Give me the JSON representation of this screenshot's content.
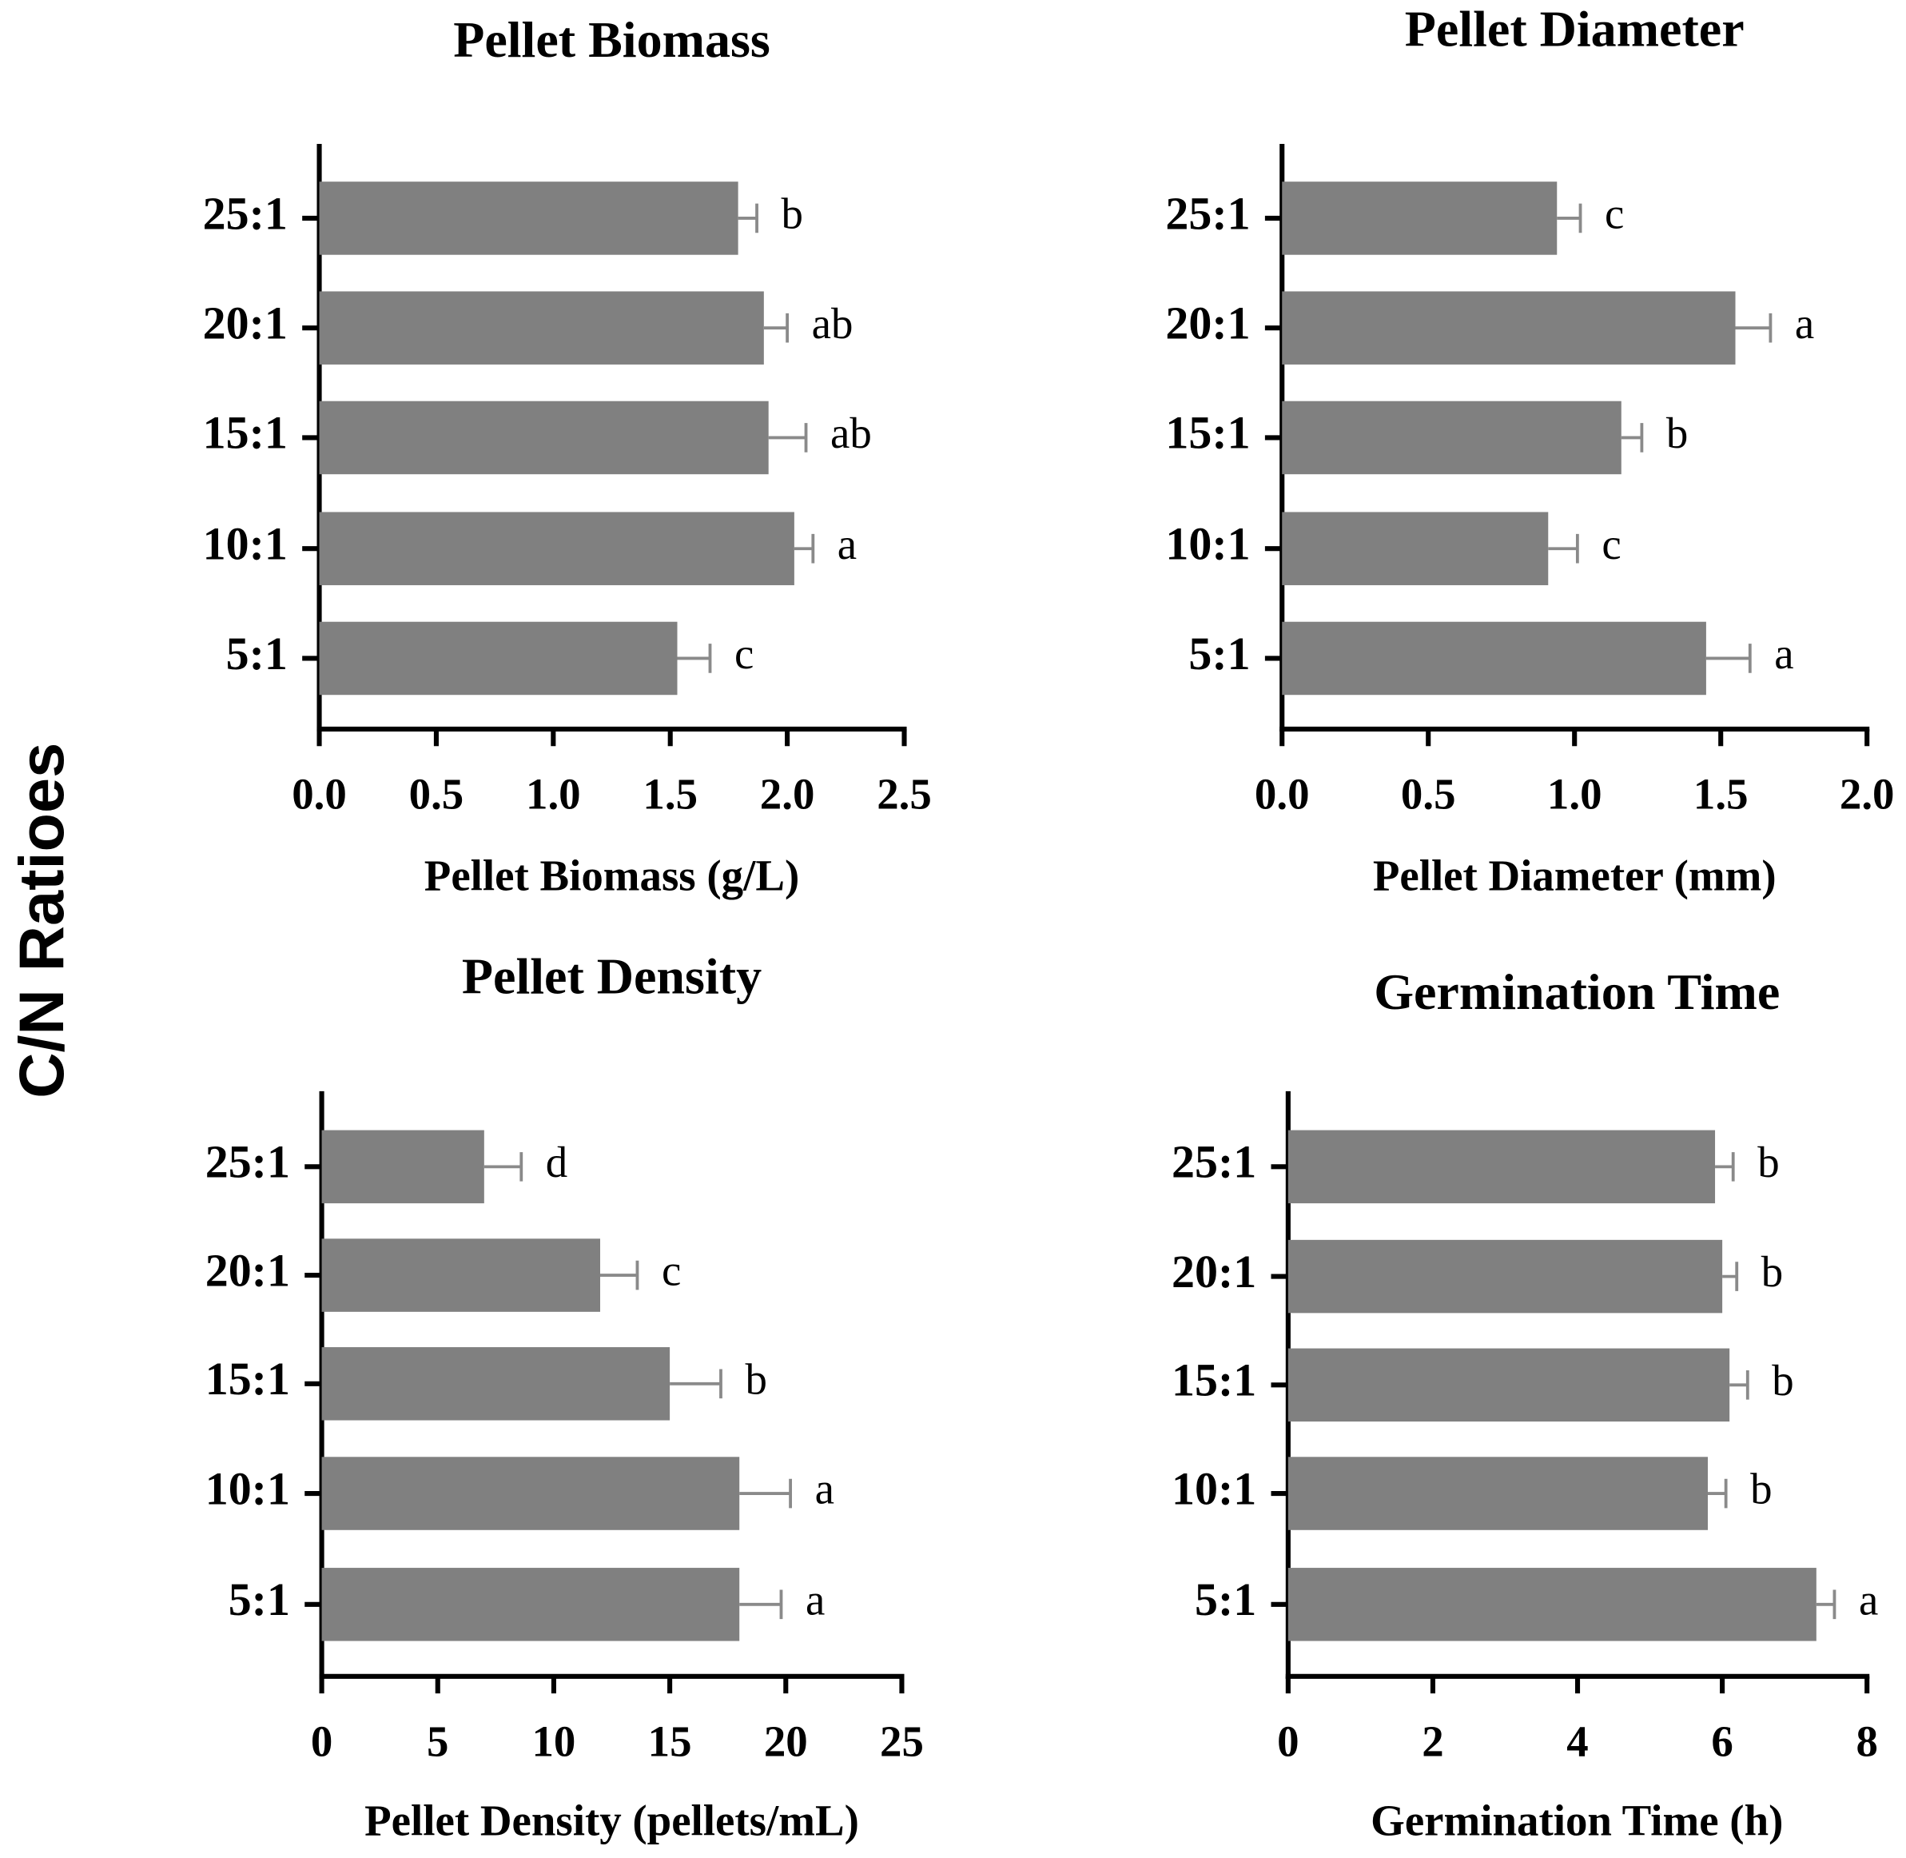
{
  "ylabel": "C/N Ratioes",
  "chart_data": [
    {
      "type": "hbar",
      "title": "Pellet Biomass",
      "xlabel": "Pellet Biomass (g/L)",
      "categories": [
        "25:1",
        "20:1",
        "15:1",
        "10:1",
        "5:1"
      ],
      "values": [
        1.79,
        1.9,
        1.92,
        2.03,
        1.53
      ],
      "errors": [
        0.08,
        0.1,
        0.16,
        0.08,
        0.14
      ],
      "annotations": [
        "b",
        "ab",
        "ab",
        "a",
        "c"
      ],
      "color": "#808080",
      "error_color": "#8a8a8a",
      "xlim": [
        0,
        2.5
      ],
      "xticks": [
        {
          "value": 0,
          "label": "0.0"
        },
        {
          "value": 0.5,
          "label": "0.5"
        },
        {
          "value": 1,
          "label": "1.0"
        },
        {
          "value": 1.5,
          "label": "1.5"
        },
        {
          "value": 2,
          "label": "2.0"
        },
        {
          "value": 2.5,
          "label": "2.5"
        }
      ]
    },
    {
      "type": "hbar",
      "title": "Pellet Diameter",
      "xlabel": "Pellet Diameter (mm)",
      "categories": [
        "25:1",
        "20:1",
        "15:1",
        "10:1",
        "5:1"
      ],
      "values": [
        0.94,
        1.55,
        1.16,
        0.91,
        1.45
      ],
      "errors": [
        0.08,
        0.12,
        0.07,
        0.1,
        0.15
      ],
      "annotations": [
        "c",
        "a",
        "b",
        "c",
        "a"
      ],
      "color": "#808080",
      "error_color": "#8a8a8a",
      "xlim": [
        0,
        2
      ],
      "xticks": [
        {
          "value": 0,
          "label": "0.0"
        },
        {
          "value": 0.5,
          "label": "0.5"
        },
        {
          "value": 1,
          "label": "1.0"
        },
        {
          "value": 1.5,
          "label": "1.5"
        },
        {
          "value": 2,
          "label": "2.0"
        }
      ]
    },
    {
      "type": "hbar",
      "title": "Pellet Density",
      "xlabel": "Pellet Density (pellets/mL)",
      "categories": [
        "25:1",
        "20:1",
        "15:1",
        "10:1",
        "5:1"
      ],
      "values": [
        7,
        12,
        15,
        18,
        18
      ],
      "errors": [
        1.6,
        1.6,
        2.2,
        2.2,
        1.8
      ],
      "annotations": [
        "d",
        "c",
        "b",
        "a",
        "a"
      ],
      "color": "#808080",
      "error_color": "#8a8a8a",
      "xlim": [
        0,
        25
      ],
      "xticks": [
        0,
        5,
        10,
        15,
        20,
        25
      ]
    },
    {
      "type": "hbar",
      "title": "Germination Time",
      "xlabel": "Germination Time (h)",
      "categories": [
        "25:1",
        "20:1",
        "15:1",
        "10:1",
        "5:1"
      ],
      "values": [
        5.9,
        6,
        6.1,
        5.8,
        7.3
      ],
      "errors": [
        0.25,
        0.2,
        0.25,
        0.25,
        0.25
      ],
      "annotations": [
        "b",
        "b",
        "b",
        "b",
        "a"
      ],
      "color": "#808080",
      "error_color": "#8a8a8a",
      "xlim": [
        0,
        8
      ],
      "xticks": [
        0,
        2,
        4,
        6,
        8
      ]
    }
  ]
}
